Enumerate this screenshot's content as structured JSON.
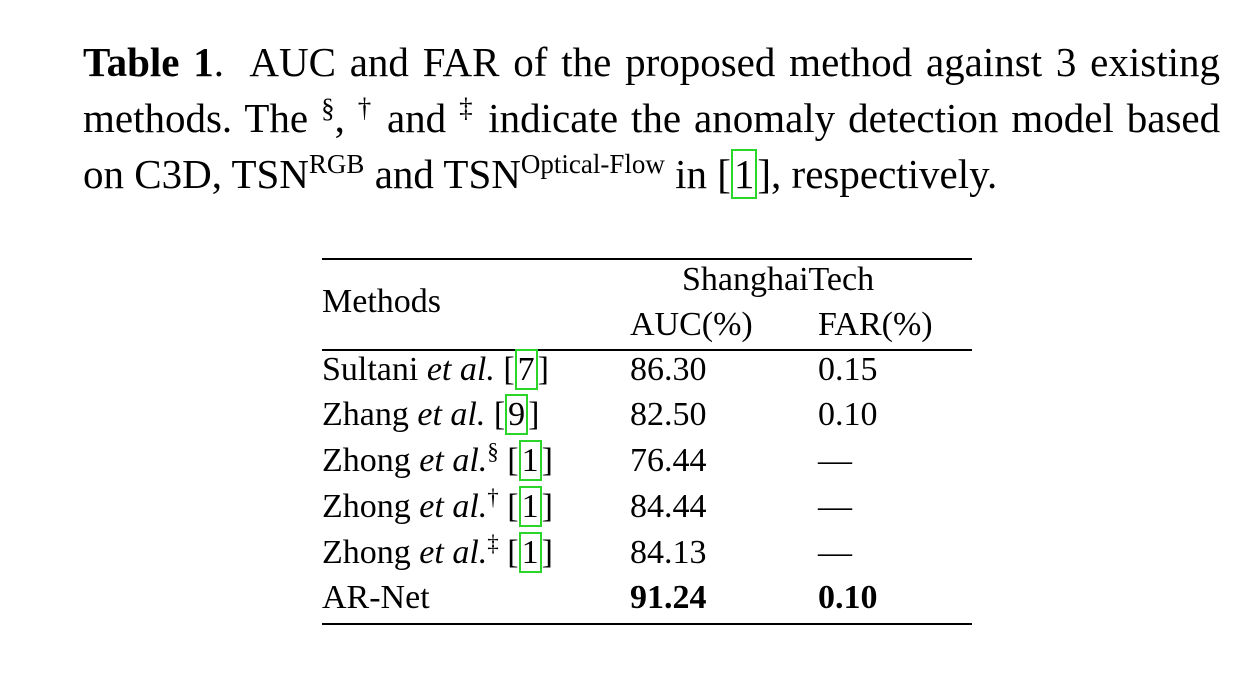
{
  "caption": {
    "label": "Table 1",
    "label_punct": ".",
    "part1": "AUC and FAR of the proposed method against 3 existing methods. The",
    "sym_section": "§",
    "comma": ",",
    "sym_dagger": "†",
    "and1": "and",
    "sym_ddagger": "‡",
    "part2": "indicate the anomaly detection model based on C3D, TSN",
    "rgb_sup": "RGB",
    "and2": "and TSN",
    "flow_sup": "Optical-Flow",
    "in_text": "in [",
    "ref": "1",
    "part3": "], respectively."
  },
  "table": {
    "methods_header": "Methods",
    "dataset_header": "ShanghaiTech",
    "col_auc": "AUC(%)",
    "col_far": "FAR(%)",
    "rows": [
      {
        "name": "Sultani ",
        "etal": "et al.",
        "sup": "",
        "ref_open": " [",
        "ref": "7",
        "ref_close": "]",
        "auc": "86.30",
        "far": "0.15"
      },
      {
        "name": "Zhang ",
        "etal": "et al.",
        "sup": "",
        "ref_open": " [",
        "ref": "9",
        "ref_close": "]",
        "auc": "82.50",
        "far": "0.10"
      },
      {
        "name": "Zhong ",
        "etal": "et al.",
        "sup": "§",
        "ref_open": " [",
        "ref": "1",
        "ref_close": "]",
        "auc": "76.44",
        "far": "—"
      },
      {
        "name": "Zhong ",
        "etal": "et al.",
        "sup": "†",
        "ref_open": " [",
        "ref": "1",
        "ref_close": "]",
        "auc": "84.44",
        "far": "—"
      },
      {
        "name": "Zhong ",
        "etal": "et al.",
        "sup": "‡",
        "ref_open": " [",
        "ref": "1",
        "ref_close": "]",
        "auc": "84.13",
        "far": "—"
      },
      {
        "name": "AR-Net",
        "auc": "91.24",
        "far": "0.10"
      }
    ]
  }
}
